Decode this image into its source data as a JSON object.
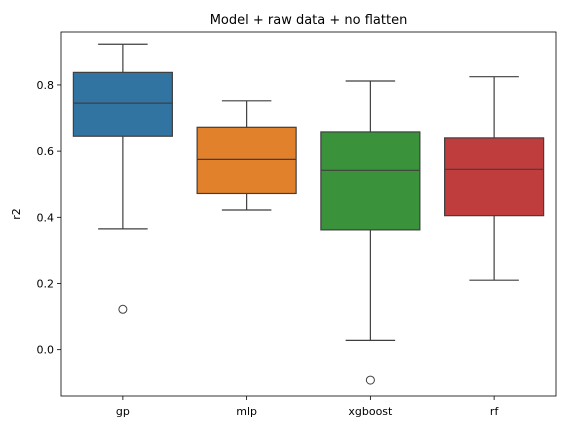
{
  "chart_data": {
    "type": "box",
    "title": "Model + raw data + no flatten",
    "xlabel": "",
    "ylabel": "r2",
    "ylim": [
      -0.14,
      0.96
    ],
    "yticks": [
      0.0,
      0.2,
      0.4,
      0.6,
      0.8
    ],
    "ytick_labels": [
      "0.0",
      "0.2",
      "0.4",
      "0.6",
      "0.8"
    ],
    "grid": false,
    "categories": [
      "gp",
      "mlp",
      "xgboost",
      "rf"
    ],
    "boxes": [
      {
        "category": "gp",
        "color": "#3274a1",
        "whisker_low": 0.365,
        "q1": 0.645,
        "median": 0.745,
        "q3": 0.838,
        "whisker_high": 0.923,
        "outliers": [
          0.122
        ]
      },
      {
        "category": "mlp",
        "color": "#e1812c",
        "whisker_low": 0.422,
        "q1": 0.472,
        "median": 0.575,
        "q3": 0.672,
        "whisker_high": 0.752,
        "outliers": []
      },
      {
        "category": "xgboost",
        "color": "#3a923a",
        "whisker_low": 0.028,
        "q1": 0.362,
        "median": 0.542,
        "q3": 0.658,
        "whisker_high": 0.812,
        "outliers": [
          -0.092
        ]
      },
      {
        "category": "rf",
        "color": "#c03d3e",
        "whisker_low": 0.21,
        "q1": 0.405,
        "median": 0.545,
        "q3": 0.64,
        "whisker_high": 0.825,
        "outliers": []
      }
    ]
  }
}
